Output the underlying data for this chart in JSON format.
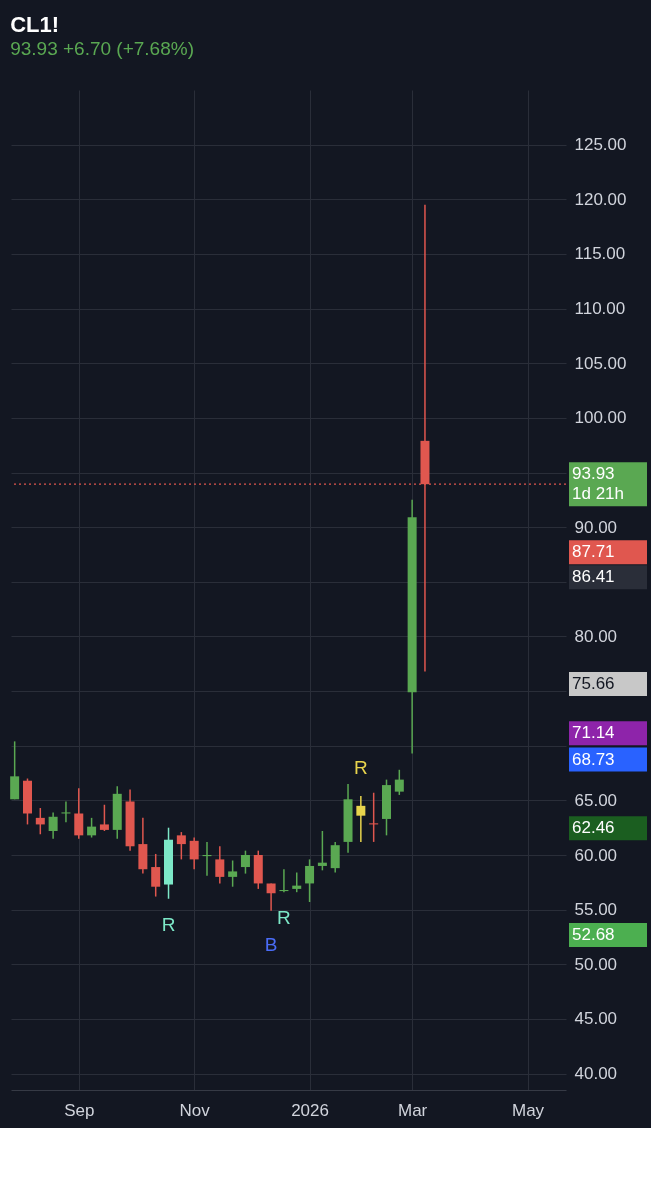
{
  "chart_data": {
    "type": "candlestick",
    "title": "CL1!",
    "subtitle": "93.93  +6.70 (+7.68%)",
    "x": [
      "2025-07-28",
      "2025-08-04",
      "2025-08-11",
      "2025-08-18",
      "2025-08-25",
      "2025-09-01",
      "2025-09-08",
      "2025-09-15",
      "2025-09-22",
      "2025-09-29",
      "2025-10-06",
      "2025-10-13",
      "2025-10-20",
      "2025-10-27",
      "2025-11-03",
      "2025-11-10",
      "2025-11-17",
      "2025-11-24",
      "2025-12-01",
      "2025-12-08",
      "2025-12-15",
      "2025-12-22",
      "2025-12-29",
      "2026-01-05",
      "2026-01-12",
      "2026-01-19",
      "2026-01-26",
      "2026-02-02",
      "2026-02-09",
      "2026-02-16",
      "2026-02-23",
      "2026-03-02",
      "2026-03-09"
    ],
    "ohlc": [
      [
        65.1,
        70.4,
        65.1,
        67.2
      ],
      [
        66.8,
        67.0,
        62.8,
        63.8
      ],
      [
        63.4,
        64.3,
        61.9,
        62.8
      ],
      [
        62.2,
        63.9,
        61.5,
        63.5
      ],
      [
        63.8,
        64.9,
        63.0,
        63.9
      ],
      [
        63.8,
        66.1,
        61.5,
        61.8
      ],
      [
        61.8,
        63.4,
        61.6,
        62.6
      ],
      [
        62.8,
        64.6,
        62.2,
        62.3
      ],
      [
        62.3,
        66.3,
        61.5,
        65.6
      ],
      [
        64.9,
        66.0,
        60.4,
        60.8
      ],
      [
        61.0,
        63.4,
        58.3,
        58.7
      ],
      [
        58.9,
        60.1,
        56.2,
        57.1
      ],
      [
        57.3,
        62.5,
        56.0,
        61.4
      ],
      [
        61.8,
        62.1,
        59.6,
        61.0
      ],
      [
        61.3,
        61.6,
        58.7,
        59.6
      ],
      [
        59.9,
        61.2,
        58.1,
        60.0
      ],
      [
        59.6,
        60.8,
        57.4,
        58.0
      ],
      [
        58.0,
        59.5,
        57.1,
        58.5
      ],
      [
        58.9,
        60.4,
        58.3,
        60.0
      ],
      [
        60.0,
        60.4,
        56.9,
        57.4
      ],
      [
        57.4,
        57.4,
        54.9,
        56.5
      ],
      [
        56.7,
        58.7,
        56.6,
        56.8
      ],
      [
        56.9,
        58.4,
        56.6,
        57.2
      ],
      [
        57.4,
        59.6,
        55.7,
        59.0
      ],
      [
        59.0,
        62.2,
        58.6,
        59.3
      ],
      [
        58.8,
        61.2,
        58.4,
        60.9
      ],
      [
        61.2,
        66.5,
        60.2,
        65.1
      ],
      [
        64.5,
        65.4,
        61.2,
        63.6
      ],
      [
        62.9,
        65.7,
        61.2,
        62.8
      ],
      [
        63.3,
        66.9,
        61.8,
        66.4
      ],
      [
        65.8,
        67.8,
        65.5,
        66.9
      ],
      [
        74.9,
        92.5,
        69.3,
        90.9
      ],
      [
        97.9,
        119.5,
        76.8,
        93.93
      ]
    ],
    "colors": [
      "#5aa852",
      "#e0574f",
      "#e0574f",
      "#5aa852",
      "#5aa852",
      "#e0574f",
      "#5aa852",
      "#e0574f",
      "#5aa852",
      "#e0574f",
      "#e0574f",
      "#e0574f",
      "#7de8c8",
      "#e0574f",
      "#e0574f",
      "#5aa852",
      "#e0574f",
      "#5aa852",
      "#5aa852",
      "#e0574f",
      "#e0574f",
      "#5aa852",
      "#5aa852",
      "#5aa852",
      "#5aa852",
      "#5aa852",
      "#5aa852",
      "#e8d44d",
      "#e0574f",
      "#5aa852",
      "#5aa852",
      "#5aa852",
      "#e0574f"
    ],
    "xlim": [
      "2025-07-26",
      "2026-05-25"
    ],
    "xticks": [
      {
        "value": "2025-09-01",
        "label": "Sep"
      },
      {
        "value": "2025-11-03",
        "label": "Nov"
      },
      {
        "value": "2026-01-05",
        "label": "2026"
      },
      {
        "value": "2026-03-02",
        "label": "Mar"
      },
      {
        "value": "2026-05-04",
        "label": "May"
      }
    ],
    "ylim": [
      38.5,
      130
    ],
    "yticks": [
      {
        "value": 40,
        "label": "40.00"
      },
      {
        "value": 45,
        "label": "45.00"
      },
      {
        "value": 50,
        "label": "50.00"
      },
      {
        "value": 55,
        "label": "55.00"
      },
      {
        "value": 60,
        "label": "60.00"
      },
      {
        "value": 65,
        "label": "65.00"
      },
      {
        "value": 70,
        "label": null
      },
      {
        "value": 75,
        "label": null
      },
      {
        "value": 80,
        "label": "80.00"
      },
      {
        "value": 85,
        "label": null
      },
      {
        "value": 90,
        "label": "90.00"
      },
      {
        "value": 95,
        "label": null
      },
      {
        "value": 100,
        "label": "100.00"
      },
      {
        "value": 105,
        "label": "105.00"
      },
      {
        "value": 110,
        "label": "110.00"
      },
      {
        "value": 115,
        "label": "115.00"
      },
      {
        "value": 120,
        "label": "120.00"
      },
      {
        "value": 125,
        "label": "125.00"
      }
    ],
    "grid": true,
    "ref_lines": [
      {
        "axis": "y",
        "value": 93.93,
        "label": "93.93 1d 21h",
        "color": "#e0574f",
        "line_style": "dotted"
      }
    ],
    "annotations": [
      "87.71",
      "86.41",
      "75.66",
      "71.14",
      "68.73",
      "62.46",
      "52.68",
      {
        "text": "R",
        "x": "2025-10-20",
        "y": 56.0
      },
      {
        "text": "B",
        "x": "2025-12-15",
        "y": 54.9
      },
      {
        "text": "R",
        "x": "2025-12-22",
        "y": 56.6
      },
      {
        "text": "R",
        "x": "2026-02-02",
        "y": 65.4
      }
    ]
  }
}
